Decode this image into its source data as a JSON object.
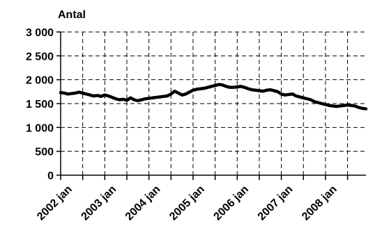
{
  "chart_data": {
    "type": "line",
    "ylabel": "Antal",
    "xlabel": "",
    "title": "",
    "ylim": [
      0,
      3000
    ],
    "y_ticks": [
      {
        "value": 0,
        "label": "0"
      },
      {
        "value": 500,
        "label": "500"
      },
      {
        "value": 1000,
        "label": "1 000"
      },
      {
        "value": 1500,
        "label": "1 500"
      },
      {
        "value": 2000,
        "label": "2 000"
      },
      {
        "value": 2500,
        "label": "2 500"
      },
      {
        "value": 3000,
        "label": "3 000"
      }
    ],
    "x_ticks": [
      {
        "index": 0,
        "label": "2002 jan"
      },
      {
        "index": 12,
        "label": "2003 jan"
      },
      {
        "index": 24,
        "label": "2004 jan"
      },
      {
        "index": 36,
        "label": "2005 jan"
      },
      {
        "index": 48,
        "label": "2006 jan"
      },
      {
        "index": 60,
        "label": "2007 jan"
      },
      {
        "index": 72,
        "label": "2008 jan"
      }
    ],
    "grid": true,
    "grid_style": "dashed",
    "series_color": "#000000",
    "series": [
      {
        "values": [
          1730,
          1720,
          1700,
          1710,
          1720,
          1740,
          1720,
          1700,
          1680,
          1660,
          1670,
          1650,
          1680,
          1660,
          1630,
          1600,
          1580,
          1590,
          1570,
          1620,
          1580,
          1560,
          1580,
          1600,
          1610,
          1620,
          1630,
          1640,
          1650,
          1660,
          1700,
          1760,
          1720,
          1680,
          1700,
          1740,
          1780,
          1800,
          1810,
          1820,
          1840,
          1860,
          1880,
          1900,
          1890,
          1860,
          1840,
          1840,
          1850,
          1860,
          1840,
          1810,
          1790,
          1780,
          1770,
          1760,
          1780,
          1790,
          1770,
          1750,
          1700,
          1680,
          1690,
          1700,
          1660,
          1640,
          1620,
          1600,
          1580,
          1540,
          1520,
          1500,
          1480,
          1460,
          1450,
          1440,
          1450,
          1460,
          1470,
          1460,
          1450,
          1420,
          1400,
          1390
        ]
      }
    ]
  }
}
